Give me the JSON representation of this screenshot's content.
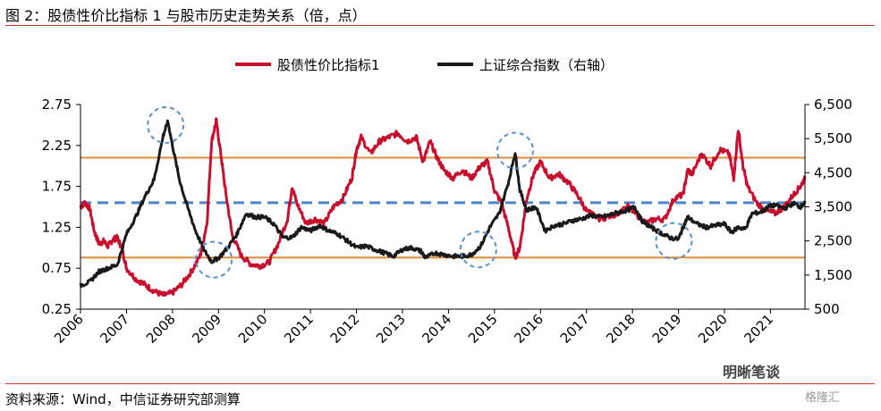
{
  "figure": {
    "title": "图 2：股债性价比指标 1 与股市历史走势关系（倍，点）",
    "source": "资料来源：Wind，中信证券研究部测算",
    "watermark": "明晰笔谈",
    "watermark_sub": "格隆汇"
  },
  "chart_data": {
    "type": "line",
    "x_ticks": [
      "2006",
      "2007",
      "2008",
      "2009",
      "2010",
      "2011",
      "2012",
      "2013",
      "2014",
      "2015",
      "2016",
      "2017",
      "2018",
      "2019",
      "2020",
      "2021"
    ],
    "xlim": [
      2006.0,
      2021.75
    ],
    "y_left": {
      "ticks": [
        "0.25",
        "0.75",
        "1.25",
        "1.75",
        "2.25",
        "2.75"
      ],
      "lim": [
        0.25,
        2.75
      ]
    },
    "y_right": {
      "ticks": [
        "500",
        "1,500",
        "2,500",
        "3,500",
        "4,500",
        "5,500",
        "6,500"
      ],
      "lim": [
        500,
        6500
      ]
    },
    "legend_position": "top-center",
    "colors": {
      "red": "#c8102e",
      "black": "#1a1a1a",
      "orange": "#e08a3c",
      "dash": "#4a86c8",
      "circle": "#5b8fc9"
    },
    "reference_lines_left": [
      0.88,
      2.1
    ],
    "dashed_line_left": 1.55,
    "series": [
      {
        "name": "股债性价比指标1",
        "axis": "left",
        "points": [
          [
            2006.0,
            1.5
          ],
          [
            2006.1,
            1.55
          ],
          [
            2006.2,
            1.48
          ],
          [
            2006.3,
            1.2
          ],
          [
            2006.4,
            1.05
          ],
          [
            2006.5,
            1.08
          ],
          [
            2006.6,
            1.02
          ],
          [
            2006.7,
            1.1
          ],
          [
            2006.8,
            1.12
          ],
          [
            2006.9,
            1.0
          ],
          [
            2007.0,
            0.75
          ],
          [
            2007.2,
            0.62
          ],
          [
            2007.4,
            0.55
          ],
          [
            2007.6,
            0.47
          ],
          [
            2007.8,
            0.42
          ],
          [
            2008.0,
            0.45
          ],
          [
            2008.2,
            0.55
          ],
          [
            2008.4,
            0.7
          ],
          [
            2008.6,
            0.9
          ],
          [
            2008.75,
            1.3
          ],
          [
            2008.85,
            2.3
          ],
          [
            2008.95,
            2.55
          ],
          [
            2009.05,
            2.15
          ],
          [
            2009.15,
            1.7
          ],
          [
            2009.3,
            1.15
          ],
          [
            2009.5,
            0.9
          ],
          [
            2009.7,
            0.8
          ],
          [
            2009.9,
            0.78
          ],
          [
            2010.1,
            0.82
          ],
          [
            2010.3,
            1.05
          ],
          [
            2010.5,
            1.35
          ],
          [
            2010.6,
            1.75
          ],
          [
            2010.7,
            1.55
          ],
          [
            2010.9,
            1.3
          ],
          [
            2011.1,
            1.35
          ],
          [
            2011.3,
            1.3
          ],
          [
            2011.5,
            1.5
          ],
          [
            2011.7,
            1.6
          ],
          [
            2011.9,
            1.85
          ],
          [
            2012.0,
            2.2
          ],
          [
            2012.1,
            2.35
          ],
          [
            2012.3,
            2.15
          ],
          [
            2012.5,
            2.3
          ],
          [
            2012.7,
            2.35
          ],
          [
            2012.9,
            2.4
          ],
          [
            2013.1,
            2.3
          ],
          [
            2013.3,
            2.35
          ],
          [
            2013.45,
            2.05
          ],
          [
            2013.6,
            2.3
          ],
          [
            2013.75,
            2.1
          ],
          [
            2013.9,
            1.95
          ],
          [
            2014.1,
            1.85
          ],
          [
            2014.3,
            1.95
          ],
          [
            2014.5,
            1.85
          ],
          [
            2014.7,
            2.0
          ],
          [
            2014.85,
            2.05
          ],
          [
            2015.0,
            1.7
          ],
          [
            2015.15,
            1.55
          ],
          [
            2015.3,
            1.25
          ],
          [
            2015.45,
            0.88
          ],
          [
            2015.55,
            1.0
          ],
          [
            2015.7,
            1.6
          ],
          [
            2015.85,
            1.9
          ],
          [
            2016.0,
            2.05
          ],
          [
            2016.2,
            1.85
          ],
          [
            2016.4,
            1.9
          ],
          [
            2016.6,
            1.8
          ],
          [
            2016.8,
            1.65
          ],
          [
            2017.0,
            1.45
          ],
          [
            2017.3,
            1.35
          ],
          [
            2017.6,
            1.4
          ],
          [
            2017.9,
            1.5
          ],
          [
            2018.1,
            1.4
          ],
          [
            2018.3,
            1.3
          ],
          [
            2018.5,
            1.35
          ],
          [
            2018.7,
            1.35
          ],
          [
            2018.9,
            1.6
          ],
          [
            2019.1,
            1.65
          ],
          [
            2019.2,
            1.95
          ],
          [
            2019.3,
            1.9
          ],
          [
            2019.5,
            2.15
          ],
          [
            2019.7,
            2.0
          ],
          [
            2019.9,
            2.2
          ],
          [
            2020.1,
            2.15
          ],
          [
            2020.2,
            1.85
          ],
          [
            2020.3,
            2.45
          ],
          [
            2020.4,
            2.0
          ],
          [
            2020.5,
            1.75
          ],
          [
            2020.7,
            1.55
          ],
          [
            2020.9,
            1.45
          ],
          [
            2021.1,
            1.42
          ],
          [
            2021.3,
            1.5
          ],
          [
            2021.5,
            1.65
          ],
          [
            2021.65,
            1.75
          ],
          [
            2021.75,
            1.85
          ]
        ]
      },
      {
        "name": "上证综合指数（右轴）",
        "axis": "right",
        "points": [
          [
            2006.0,
            1200
          ],
          [
            2006.2,
            1300
          ],
          [
            2006.4,
            1600
          ],
          [
            2006.6,
            1700
          ],
          [
            2006.8,
            1800
          ],
          [
            2007.0,
            2700
          ],
          [
            2007.2,
            3200
          ],
          [
            2007.4,
            3800
          ],
          [
            2007.6,
            4300
          ],
          [
            2007.8,
            5600
          ],
          [
            2007.9,
            6000
          ],
          [
            2008.0,
            5300
          ],
          [
            2008.15,
            4300
          ],
          [
            2008.3,
            3600
          ],
          [
            2008.5,
            2800
          ],
          [
            2008.7,
            2200
          ],
          [
            2008.85,
            1900
          ],
          [
            2009.0,
            2000
          ],
          [
            2009.2,
            2300
          ],
          [
            2009.4,
            2700
          ],
          [
            2009.6,
            3300
          ],
          [
            2009.8,
            3200
          ],
          [
            2010.0,
            3200
          ],
          [
            2010.2,
            3000
          ],
          [
            2010.4,
            2600
          ],
          [
            2010.6,
            2600
          ],
          [
            2010.8,
            2900
          ],
          [
            2011.0,
            2800
          ],
          [
            2011.2,
            2950
          ],
          [
            2011.4,
            2800
          ],
          [
            2011.6,
            2700
          ],
          [
            2011.8,
            2500
          ],
          [
            2012.0,
            2300
          ],
          [
            2012.2,
            2350
          ],
          [
            2012.4,
            2250
          ],
          [
            2012.6,
            2150
          ],
          [
            2012.8,
            2050
          ],
          [
            2013.0,
            2250
          ],
          [
            2013.2,
            2300
          ],
          [
            2013.4,
            2200
          ],
          [
            2013.5,
            2000
          ],
          [
            2013.7,
            2150
          ],
          [
            2013.9,
            2100
          ],
          [
            2014.1,
            2050
          ],
          [
            2014.3,
            2050
          ],
          [
            2014.5,
            2100
          ],
          [
            2014.7,
            2350
          ],
          [
            2014.9,
            2900
          ],
          [
            2015.1,
            3300
          ],
          [
            2015.3,
            4200
          ],
          [
            2015.45,
            5100
          ],
          [
            2015.55,
            4000
          ],
          [
            2015.7,
            3400
          ],
          [
            2015.9,
            3500
          ],
          [
            2016.1,
            2800
          ],
          [
            2016.3,
            2950
          ],
          [
            2016.5,
            3000
          ],
          [
            2016.7,
            3100
          ],
          [
            2016.9,
            3150
          ],
          [
            2017.1,
            3250
          ],
          [
            2017.3,
            3200
          ],
          [
            2017.5,
            3250
          ],
          [
            2017.7,
            3350
          ],
          [
            2017.9,
            3400
          ],
          [
            2018.05,
            3500
          ],
          [
            2018.2,
            3100
          ],
          [
            2018.4,
            2900
          ],
          [
            2018.6,
            2750
          ],
          [
            2018.8,
            2600
          ],
          [
            2019.0,
            2550
          ],
          [
            2019.1,
            2900
          ],
          [
            2019.2,
            3200
          ],
          [
            2019.4,
            3000
          ],
          [
            2019.6,
            2900
          ],
          [
            2019.8,
            2950
          ],
          [
            2020.0,
            3000
          ],
          [
            2020.15,
            2750
          ],
          [
            2020.3,
            2900
          ],
          [
            2020.45,
            2850
          ],
          [
            2020.6,
            3300
          ],
          [
            2020.8,
            3350
          ],
          [
            2020.95,
            3500
          ],
          [
            2021.1,
            3550
          ],
          [
            2021.3,
            3450
          ],
          [
            2021.5,
            3600
          ],
          [
            2021.65,
            3500
          ],
          [
            2021.75,
            3600
          ]
        ]
      }
    ],
    "annotations": [
      {
        "type": "dashed-circle",
        "x": 2007.85,
        "y_right": 5900
      },
      {
        "type": "dashed-circle",
        "x": 2008.9,
        "y_right": 1950
      },
      {
        "type": "dashed-circle",
        "x": 2014.65,
        "y_right": 2250
      },
      {
        "type": "dashed-circle",
        "x": 2015.45,
        "y_right": 5150
      },
      {
        "type": "dashed-circle",
        "x": 2018.9,
        "y_right": 2500
      }
    ]
  }
}
